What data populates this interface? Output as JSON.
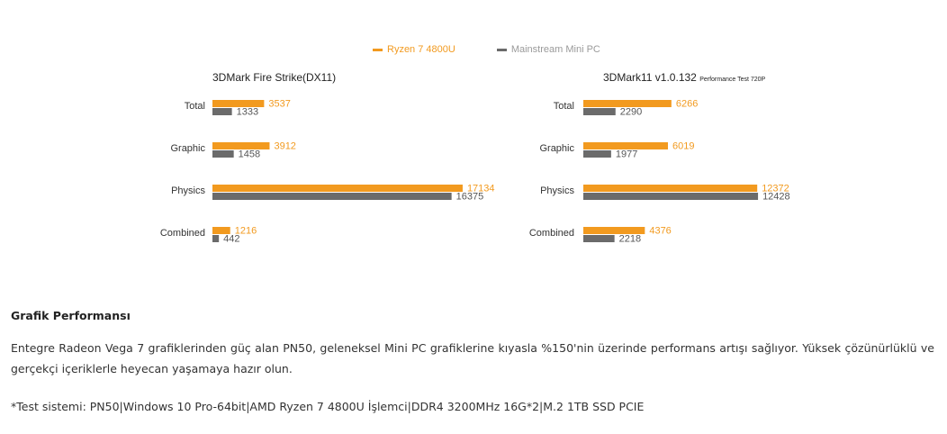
{
  "legend": {
    "items": [
      {
        "label": "Ryzen 7 4800U",
        "color": "#f29a1f"
      },
      {
        "label": "Mainstream Mini PC",
        "color": "#6b6b6b"
      }
    ]
  },
  "chart_data": [
    {
      "type": "bar",
      "orientation": "horizontal",
      "title": "3DMark Fire Strike(DX11)",
      "title_suffix": "",
      "categories": [
        "Total",
        "Graphic",
        "Physics",
        "Combined"
      ],
      "series": [
        {
          "name": "Ryzen 7 4800U",
          "color": "#f29a1f",
          "values": [
            3537,
            3912,
            17134,
            1216
          ]
        },
        {
          "name": "Mainstream Mini PC",
          "color": "#6b6b6b",
          "values": [
            1333,
            1458,
            16375,
            442
          ]
        }
      ],
      "xlim": [
        0,
        18000
      ],
      "grid": false
    },
    {
      "type": "bar",
      "orientation": "horizontal",
      "title": "3DMark11 v1.0.132",
      "title_suffix": "Performance Test 720P",
      "categories": [
        "Total",
        "Graphic",
        "Physics",
        "Combined"
      ],
      "series": [
        {
          "name": "Ryzen 7 4800U",
          "color": "#f29a1f",
          "values": [
            6266,
            6019,
            12372,
            4376
          ]
        },
        {
          "name": "Mainstream Mini PC",
          "color": "#6b6b6b",
          "values": [
            2290,
            1977,
            12428,
            2218
          ]
        }
      ],
      "xlim": [
        0,
        13000
      ],
      "grid": false
    }
  ],
  "caption": {
    "title": "Grafik Performansı",
    "body": "Entegre Radeon Vega 7 grafiklerinden güç alan PN50, geleneksel Mini PC grafiklerine kıyasla %150'nin üzerinde performans artışı sağlıyor. Yüksek çözünürlüklü ve gerçekçi içeriklerle heyecan yaşamaya hazır olun.",
    "note": "*Test sistemi: PN50|Windows 10 Pro-64bit|AMD Ryzen 7 4800U İşlemci|DDR4 3200MHz 16G*2|M.2 1TB SSD PCIE"
  }
}
